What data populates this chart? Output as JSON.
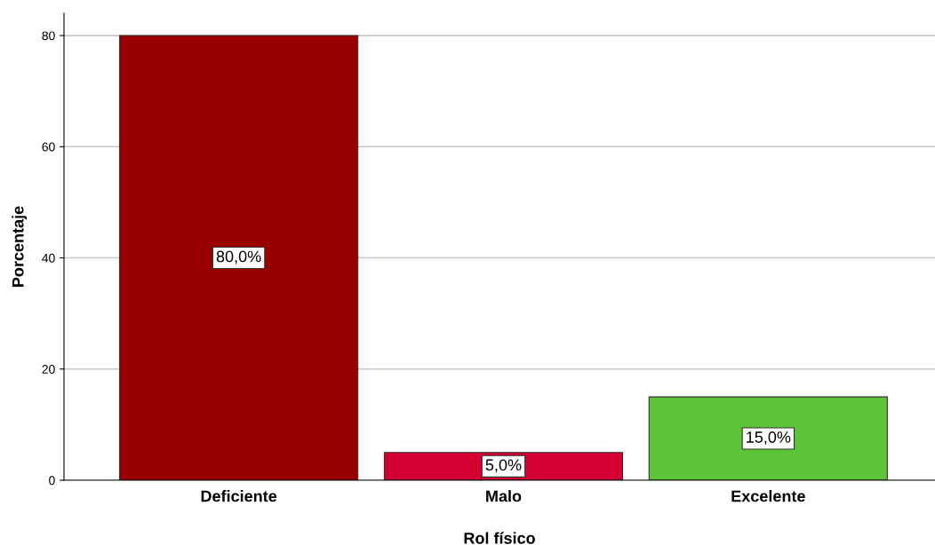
{
  "chart_data": {
    "type": "bar",
    "xlabel": "Rol físico",
    "ylabel": "Porcentaje",
    "categories": [
      "Deficiente",
      "Malo",
      "Excelente"
    ],
    "values": [
      80.0,
      5.0,
      15.0
    ],
    "colors": [
      "#990000",
      "#d50032",
      "#5ec437"
    ],
    "value_labels": [
      "80,0%",
      "5,0%",
      "15,0%"
    ],
    "ylim": [
      0,
      84
    ],
    "yticks": [
      0,
      20,
      40,
      60,
      80
    ],
    "grid": "y",
    "legend": false
  }
}
